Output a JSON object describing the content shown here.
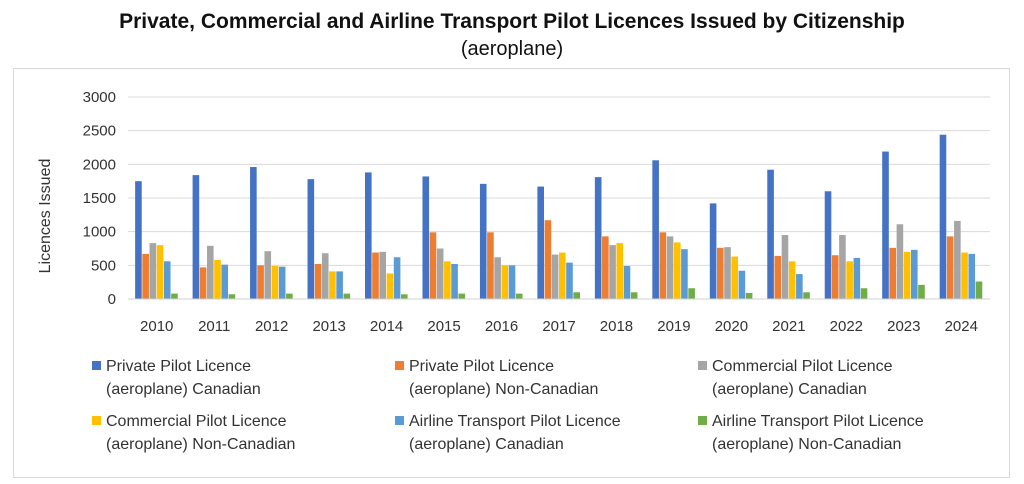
{
  "chart_data": {
    "type": "bar",
    "title": "Private, Commercial and Airline Transport Pilot Licences Issued by Citizenship",
    "subtitle": "(aeroplane)",
    "xlabel": "",
    "ylabel": "Licences Issued",
    "ylim": [
      0,
      3000
    ],
    "yticks": [
      0,
      500,
      1000,
      1500,
      2000,
      2500,
      3000
    ],
    "grid": true,
    "legend_position": "bottom",
    "categories": [
      "2010",
      "2011",
      "2012",
      "2013",
      "2014",
      "2015",
      "2016",
      "2017",
      "2018",
      "2019",
      "2020",
      "2021",
      "2022",
      "2023",
      "2024"
    ],
    "series": [
      {
        "name": "Private Pilot Licence (aeroplane) Canadian",
        "color": "#4472c4",
        "values": [
          1750,
          1840,
          1960,
          1780,
          1880,
          1820,
          1710,
          1670,
          1810,
          2060,
          1420,
          1920,
          1600,
          2190,
          2440
        ]
      },
      {
        "name": "Private Pilot Licence (aeroplane) Non-Canadian",
        "color": "#ed7d31",
        "values": [
          670,
          470,
          500,
          520,
          690,
          990,
          990,
          1170,
          930,
          990,
          760,
          640,
          650,
          760,
          930
        ]
      },
      {
        "name": "Commercial Pilot Licence (aeroplane) Canadian",
        "color": "#a5a5a5",
        "values": [
          830,
          790,
          710,
          680,
          700,
          750,
          620,
          660,
          800,
          930,
          770,
          950,
          950,
          1110,
          1160
        ]
      },
      {
        "name": "Commercial Pilot Licence (aeroplane) Non-Canadian",
        "color": "#ffc000",
        "values": [
          800,
          580,
          490,
          410,
          380,
          560,
          500,
          690,
          830,
          840,
          630,
          560,
          560,
          700,
          690
        ]
      },
      {
        "name": "Airline Transport Pilot Licence (aeroplane) Canadian",
        "color": "#5b9bd5",
        "values": [
          560,
          510,
          480,
          410,
          620,
          520,
          500,
          540,
          490,
          740,
          420,
          370,
          610,
          730,
          670
        ]
      },
      {
        "name": "Airline Transport Pilot Licence (aeroplane) Non-Canadian",
        "color": "#70ad47",
        "values": [
          80,
          70,
          80,
          80,
          70,
          80,
          80,
          100,
          100,
          160,
          90,
          100,
          160,
          210,
          260
        ]
      }
    ]
  }
}
